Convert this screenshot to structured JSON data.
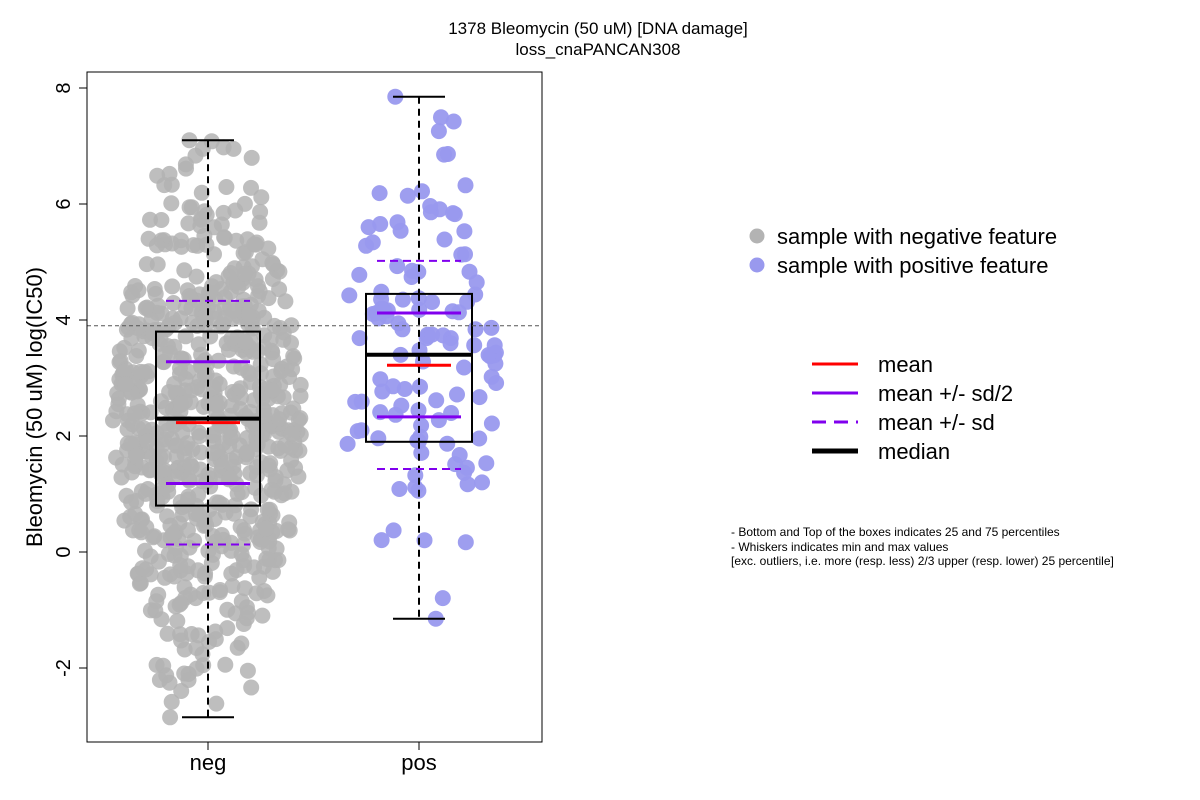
{
  "chart_data": {
    "type": "box",
    "title": "1378 Bleomycin (50 uM) [DNA damage]",
    "subtitle": "loss_cnaPANCAN308",
    "xlabel": "",
    "ylabel": "Bleomycin (50 uM) log(IC50)",
    "ylim": [
      -3.2,
      8.3
    ],
    "yticks": [
      -2,
      0,
      2,
      4,
      6,
      8
    ],
    "categories": [
      "neg",
      "pos"
    ],
    "reference_line": 3.9,
    "groups": [
      {
        "name": "neg",
        "point_color": "#b3b3b3",
        "n_points": 700,
        "whisker_min": -2.85,
        "q1": 0.8,
        "median": 2.3,
        "mean": 2.23,
        "q3": 3.8,
        "whisker_max": 7.1,
        "mean_minus_half_sd": 1.18,
        "mean_plus_half_sd": 3.28,
        "mean_minus_sd": 0.13,
        "mean_plus_sd": 4.33,
        "observed_min": -2.85,
        "observed_max": 7.1
      },
      {
        "name": "pos",
        "point_color": "#9999ee",
        "n_points": 120,
        "whisker_min": -1.15,
        "q1": 1.9,
        "median": 3.4,
        "mean": 3.22,
        "q3": 4.45,
        "whisker_max": 7.85,
        "mean_minus_half_sd": 2.33,
        "mean_plus_half_sd": 4.12,
        "mean_minus_sd": 1.43,
        "mean_plus_sd": 5.02,
        "observed_min": -1.15,
        "observed_max": 7.85
      }
    ],
    "legend_points": [
      {
        "label": "sample with negative feature",
        "color": "#b3b3b3"
      },
      {
        "label": "sample with positive feature",
        "color": "#9999ee"
      }
    ],
    "legend_lines": [
      {
        "label": "mean",
        "color": "#ff0000",
        "style": "solid"
      },
      {
        "label": "mean +/- sd/2",
        "color": "#8000ee",
        "style": "solid"
      },
      {
        "label": "mean +/- sd",
        "color": "#8000ee",
        "style": "dashed"
      },
      {
        "label": "median",
        "color": "#000000",
        "style": "solid"
      }
    ],
    "notes": [
      "- Bottom and Top of the boxes indicates 25 and 75 percentiles",
      "- Whiskers indicates min and max values",
      "[exc. outliers, i.e. more (resp. less) 2/3 upper (resp. lower) 25 percentile]"
    ],
    "grid": false,
    "legend_position": "right"
  }
}
